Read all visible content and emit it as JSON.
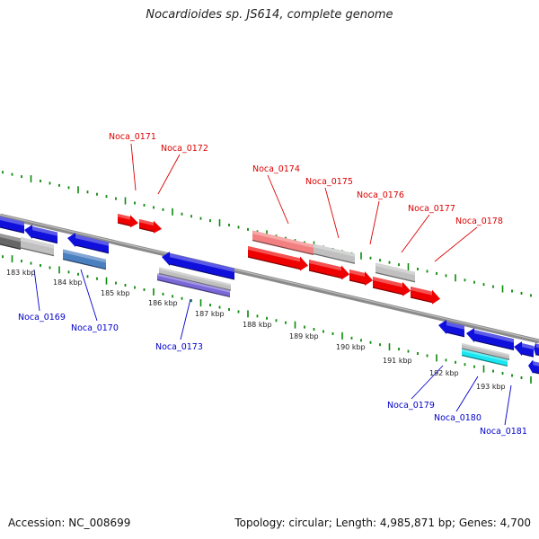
{
  "title": "Nocardioides sp. JS614, complete genome",
  "footer": {
    "accession": "Accession: NC_008699",
    "topology": "Topology: circular; Length: 4,985,871 bp; Genes: 4,700"
  },
  "colors": {
    "forward": "#ee0000",
    "forward_light": "#f28080",
    "reverse": "#1010dd",
    "gray": "#c0c0c0",
    "steel": "#4a7fc0",
    "purple": "#7a68d8",
    "cyan": "#19e6f0",
    "tick": "#0a8a0a",
    "backbone": "#808080"
  },
  "kbp_labels": [
    "183 kbp",
    "184 kbp",
    "185 kbp",
    "186 kbp",
    "187 kbp",
    "188 kbp",
    "189 kbp",
    "190 kbp",
    "191 kbp",
    "192 kbp",
    "193 kbp"
  ],
  "forward_genes": [
    {
      "label": "Noca_0171"
    },
    {
      "label": "Noca_0172"
    },
    {
      "label": "Noca_0174"
    },
    {
      "label": "Noca_0175"
    },
    {
      "label": "Noca_0176"
    },
    {
      "label": "Noca_0177"
    },
    {
      "label": "Noca_0178"
    }
  ],
  "reverse_genes": [
    {
      "label": "Noca_0169"
    },
    {
      "label": "Noca_0170"
    },
    {
      "label": "Noca_0173"
    },
    {
      "label": "Noca_0179"
    },
    {
      "label": "Noca_0180"
    },
    {
      "label": "Noca_0181"
    }
  ]
}
